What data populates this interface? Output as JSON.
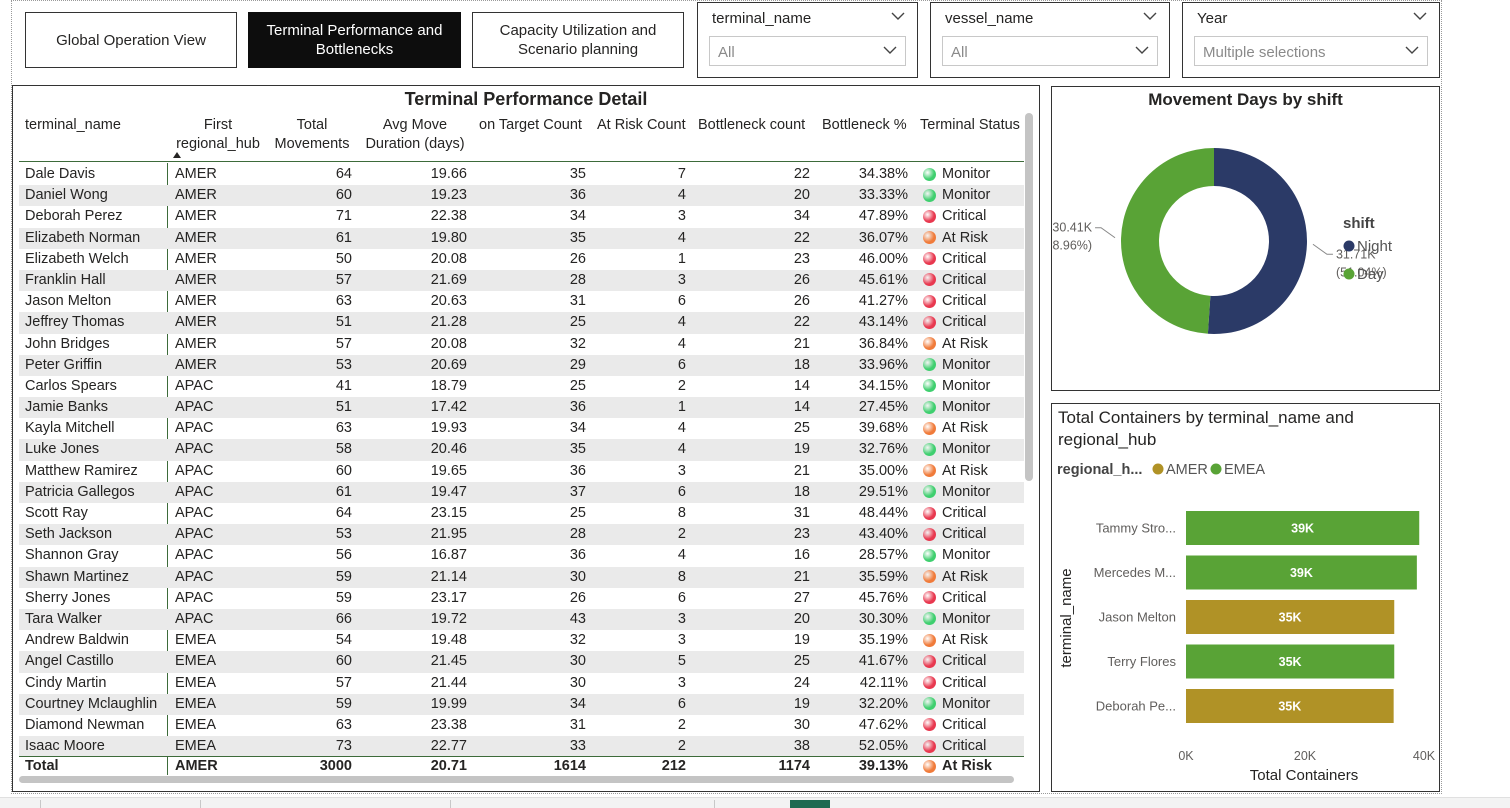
{
  "nav": {
    "global": "Global Operation View",
    "terminal_line1": "Terminal Performance and",
    "terminal_line2": "Bottlenecks",
    "capacity_line1": "Capacity Utilization and",
    "capacity_line2": "Scenario planning"
  },
  "slicers": {
    "terminal": {
      "title": "terminal_name",
      "value": "All"
    },
    "vessel": {
      "title": "vessel_name",
      "value": "All"
    },
    "year": {
      "title": "Year",
      "value": "Multiple selections"
    }
  },
  "table": {
    "title": "Terminal Performance Detail",
    "headers": {
      "terminal_name": "terminal_name",
      "hub_line1": "First",
      "hub_line2": "regional_hub",
      "total_line1": "Total",
      "total_line2": "Movements",
      "avg_line1": "Avg Move",
      "avg_line2": "Duration (days)",
      "on_target": "on Target Count",
      "at_risk": "At Risk Count",
      "bottleneck": "Bottleneck count",
      "bottleneck_pct": "Bottleneck %",
      "status": "Terminal Status"
    },
    "rows": [
      {
        "name": "Dale Davis",
        "hub": "AMER",
        "total": "64",
        "avg": "19.66",
        "on_target": "35",
        "at_risk": "7",
        "bottleneck": "22",
        "pct": "34.38%",
        "status": "Monitor"
      },
      {
        "name": "Daniel Wong",
        "hub": "AMER",
        "total": "60",
        "avg": "19.23",
        "on_target": "36",
        "at_risk": "4",
        "bottleneck": "20",
        "pct": "33.33%",
        "status": "Monitor"
      },
      {
        "name": "Deborah Perez",
        "hub": "AMER",
        "total": "71",
        "avg": "22.38",
        "on_target": "34",
        "at_risk": "3",
        "bottleneck": "34",
        "pct": "47.89%",
        "status": "Critical"
      },
      {
        "name": "Elizabeth Norman",
        "hub": "AMER",
        "total": "61",
        "avg": "19.80",
        "on_target": "35",
        "at_risk": "4",
        "bottleneck": "22",
        "pct": "36.07%",
        "status": "At Risk"
      },
      {
        "name": "Elizabeth Welch",
        "hub": "AMER",
        "total": "50",
        "avg": "20.08",
        "on_target": "26",
        "at_risk": "1",
        "bottleneck": "23",
        "pct": "46.00%",
        "status": "Critical"
      },
      {
        "name": "Franklin Hall",
        "hub": "AMER",
        "total": "57",
        "avg": "21.69",
        "on_target": "28",
        "at_risk": "3",
        "bottleneck": "26",
        "pct": "45.61%",
        "status": "Critical"
      },
      {
        "name": "Jason Melton",
        "hub": "AMER",
        "total": "63",
        "avg": "20.63",
        "on_target": "31",
        "at_risk": "6",
        "bottleneck": "26",
        "pct": "41.27%",
        "status": "Critical"
      },
      {
        "name": "Jeffrey Thomas",
        "hub": "AMER",
        "total": "51",
        "avg": "21.28",
        "on_target": "25",
        "at_risk": "4",
        "bottleneck": "22",
        "pct": "43.14%",
        "status": "Critical"
      },
      {
        "name": "John Bridges",
        "hub": "AMER",
        "total": "57",
        "avg": "20.08",
        "on_target": "32",
        "at_risk": "4",
        "bottleneck": "21",
        "pct": "36.84%",
        "status": "At Risk"
      },
      {
        "name": "Peter Griffin",
        "hub": "AMER",
        "total": "53",
        "avg": "20.69",
        "on_target": "29",
        "at_risk": "6",
        "bottleneck": "18",
        "pct": "33.96%",
        "status": "Monitor"
      },
      {
        "name": "Carlos Spears",
        "hub": "APAC",
        "total": "41",
        "avg": "18.79",
        "on_target": "25",
        "at_risk": "2",
        "bottleneck": "14",
        "pct": "34.15%",
        "status": "Monitor"
      },
      {
        "name": "Jamie Banks",
        "hub": "APAC",
        "total": "51",
        "avg": "17.42",
        "on_target": "36",
        "at_risk": "1",
        "bottleneck": "14",
        "pct": "27.45%",
        "status": "Monitor"
      },
      {
        "name": "Kayla Mitchell",
        "hub": "APAC",
        "total": "63",
        "avg": "19.93",
        "on_target": "34",
        "at_risk": "4",
        "bottleneck": "25",
        "pct": "39.68%",
        "status": "At Risk"
      },
      {
        "name": "Luke Jones",
        "hub": "APAC",
        "total": "58",
        "avg": "20.46",
        "on_target": "35",
        "at_risk": "4",
        "bottleneck": "19",
        "pct": "32.76%",
        "status": "Monitor"
      },
      {
        "name": "Matthew Ramirez",
        "hub": "APAC",
        "total": "60",
        "avg": "19.65",
        "on_target": "36",
        "at_risk": "3",
        "bottleneck": "21",
        "pct": "35.00%",
        "status": "At Risk"
      },
      {
        "name": "Patricia Gallegos",
        "hub": "APAC",
        "total": "61",
        "avg": "19.47",
        "on_target": "37",
        "at_risk": "6",
        "bottleneck": "18",
        "pct": "29.51%",
        "status": "Monitor"
      },
      {
        "name": "Scott Ray",
        "hub": "APAC",
        "total": "64",
        "avg": "23.15",
        "on_target": "25",
        "at_risk": "8",
        "bottleneck": "31",
        "pct": "48.44%",
        "status": "Critical"
      },
      {
        "name": "Seth Jackson",
        "hub": "APAC",
        "total": "53",
        "avg": "21.95",
        "on_target": "28",
        "at_risk": "2",
        "bottleneck": "23",
        "pct": "43.40%",
        "status": "Critical"
      },
      {
        "name": "Shannon Gray",
        "hub": "APAC",
        "total": "56",
        "avg": "16.87",
        "on_target": "36",
        "at_risk": "4",
        "bottleneck": "16",
        "pct": "28.57%",
        "status": "Monitor"
      },
      {
        "name": "Shawn Martinez",
        "hub": "APAC",
        "total": "59",
        "avg": "21.14",
        "on_target": "30",
        "at_risk": "8",
        "bottleneck": "21",
        "pct": "35.59%",
        "status": "At Risk"
      },
      {
        "name": "Sherry Jones",
        "hub": "APAC",
        "total": "59",
        "avg": "23.17",
        "on_target": "26",
        "at_risk": "6",
        "bottleneck": "27",
        "pct": "45.76%",
        "status": "Critical"
      },
      {
        "name": "Tara Walker",
        "hub": "APAC",
        "total": "66",
        "avg": "19.72",
        "on_target": "43",
        "at_risk": "3",
        "bottleneck": "20",
        "pct": "30.30%",
        "status": "Monitor"
      },
      {
        "name": "Andrew Baldwin",
        "hub": "EMEA",
        "total": "54",
        "avg": "19.48",
        "on_target": "32",
        "at_risk": "3",
        "bottleneck": "19",
        "pct": "35.19%",
        "status": "At Risk"
      },
      {
        "name": "Angel Castillo",
        "hub": "EMEA",
        "total": "60",
        "avg": "21.45",
        "on_target": "30",
        "at_risk": "5",
        "bottleneck": "25",
        "pct": "41.67%",
        "status": "Critical"
      },
      {
        "name": "Cindy Martin",
        "hub": "EMEA",
        "total": "57",
        "avg": "21.44",
        "on_target": "30",
        "at_risk": "3",
        "bottleneck": "24",
        "pct": "42.11%",
        "status": "Critical"
      },
      {
        "name": "Courtney Mclaughlin",
        "hub": "EMEA",
        "total": "59",
        "avg": "19.99",
        "on_target": "34",
        "at_risk": "6",
        "bottleneck": "19",
        "pct": "32.20%",
        "status": "Monitor"
      },
      {
        "name": "Diamond Newman",
        "hub": "EMEA",
        "total": "63",
        "avg": "23.38",
        "on_target": "31",
        "at_risk": "2",
        "bottleneck": "30",
        "pct": "47.62%",
        "status": "Critical"
      },
      {
        "name": "Isaac Moore",
        "hub": "EMEA",
        "total": "73",
        "avg": "22.77",
        "on_target": "33",
        "at_risk": "2",
        "bottleneck": "38",
        "pct": "52.05%",
        "status": "Critical"
      }
    ],
    "total": {
      "label": "Total",
      "hub": "AMER",
      "total": "3000",
      "avg": "20.71",
      "on_target": "1614",
      "at_risk": "212",
      "bottleneck": "1174",
      "pct": "39.13%",
      "status": "At Risk"
    },
    "status_colors": {
      "Monitor": "#3fcf6f",
      "Critical": "#e8384f",
      "At Risk": "#f07b3a"
    }
  },
  "chart_data": [
    {
      "type": "pie",
      "title": "Movement Days by shift",
      "legend_title": "shift",
      "legend_position": "right",
      "categories": [
        "Night",
        "Day"
      ],
      "values": [
        31710,
        30410
      ],
      "labels": [
        "31.71K",
        "30.41K"
      ],
      "percent_labels": [
        "(51.04%)",
        "(48.96%)"
      ],
      "colors": [
        "#2b3a67",
        "#59a336"
      ]
    },
    {
      "type": "bar",
      "orientation": "horizontal",
      "title_line1": "Total Containers by terminal_name and",
      "title_line2": "regional_hub",
      "legend_title": "regional_h...",
      "legend_position": "top-left",
      "legend": [
        {
          "name": "AMER",
          "color": "#b09226"
        },
        {
          "name": "EMEA",
          "color": "#59a336"
        }
      ],
      "categories": [
        "Tammy Stro...",
        "Mercedes M...",
        "Jason Melton",
        "Terry Flores",
        "Deborah Pe..."
      ],
      "values": [
        39200,
        38800,
        35000,
        35000,
        34900
      ],
      "hubs": [
        "EMEA",
        "EMEA",
        "AMER",
        "EMEA",
        "AMER"
      ],
      "data_labels": [
        "39K",
        "39K",
        "35K",
        "35K",
        "35K"
      ],
      "xlabel": "Total Containers",
      "ylabel": "terminal_name",
      "xticks": [
        "0K",
        "20K",
        "40K"
      ],
      "xtick_values": [
        0,
        20000,
        40000
      ],
      "xlim": [
        0,
        40000
      ]
    }
  ]
}
